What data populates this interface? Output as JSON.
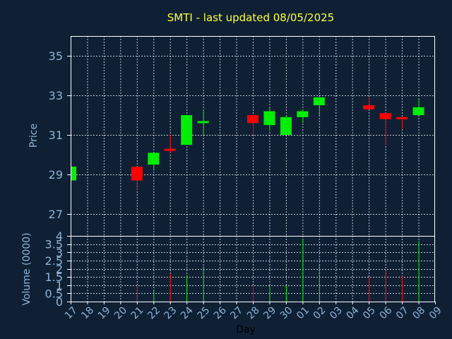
{
  "chart_data": {
    "type": "candlestick",
    "title": "SMTI - last updated 08/05/2025",
    "xlabel": "Day",
    "colors": {
      "background": "#0f2035",
      "up": "#00ee00",
      "down": "#ff0000",
      "grid": "#ffffff",
      "title": "#ffff33",
      "axis_text": "#8fb3d6"
    },
    "x_ticks": [
      "17",
      "18",
      "19",
      "20",
      "21",
      "22",
      "23",
      "24",
      "25",
      "26",
      "27",
      "28",
      "29",
      "30",
      "01",
      "02",
      "03",
      "04",
      "05",
      "06",
      "07",
      "08",
      "09"
    ],
    "price_panel": {
      "ylabel": "Price",
      "ylim": [
        25.9,
        36.0
      ],
      "yticks": [
        27,
        29,
        31,
        33,
        35
      ],
      "candles": [
        {
          "x": "17",
          "open": 28.7,
          "high": 29.4,
          "low": 28.7,
          "close": 29.4
        },
        {
          "x": "21",
          "open": 29.4,
          "high": 29.4,
          "low": 28.2,
          "close": 28.7
        },
        {
          "x": "22",
          "open": 29.5,
          "high": 30.1,
          "low": 29.2,
          "close": 30.1
        },
        {
          "x": "23",
          "open": 30.3,
          "high": 31.0,
          "low": 30.1,
          "close": 30.2
        },
        {
          "x": "24",
          "open": 30.5,
          "high": 32.0,
          "low": 30.5,
          "close": 32.0
        },
        {
          "x": "25",
          "open": 31.6,
          "high": 32.3,
          "low": 31.0,
          "close": 31.7
        },
        {
          "x": "28",
          "open": 32.0,
          "high": 32.0,
          "low": 31.0,
          "close": 31.6
        },
        {
          "x": "29",
          "open": 31.5,
          "high": 32.4,
          "low": 31.2,
          "close": 32.2
        },
        {
          "x": "30",
          "open": 31.0,
          "high": 32.0,
          "low": 31.0,
          "close": 31.9
        },
        {
          "x": "01",
          "open": 31.9,
          "high": 32.3,
          "low": 31.6,
          "close": 32.2
        },
        {
          "x": "02",
          "open": 32.5,
          "high": 32.9,
          "low": 32.0,
          "close": 32.9
        },
        {
          "x": "05",
          "open": 32.5,
          "high": 32.9,
          "low": 32.3,
          "close": 32.3
        },
        {
          "x": "06",
          "open": 32.1,
          "high": 32.1,
          "low": 30.5,
          "close": 31.8
        },
        {
          "x": "07",
          "open": 31.9,
          "high": 31.9,
          "low": 31.3,
          "close": 31.8
        },
        {
          "x": "08",
          "open": 32.0,
          "high": 32.8,
          "low": 32.0,
          "close": 32.4
        }
      ]
    },
    "volume_panel": {
      "ylabel": "Volume (0000)",
      "ylim": [
        0,
        4
      ],
      "yticks": [
        "0",
        "0.5",
        "1",
        "1.5",
        "2",
        "2.5",
        "3",
        "3.5",
        "4"
      ],
      "bars": [
        {
          "x": "21",
          "value": 0.95,
          "direction": "down"
        },
        {
          "x": "22",
          "value": 0.65,
          "direction": "up"
        },
        {
          "x": "23",
          "value": 1.7,
          "direction": "down"
        },
        {
          "x": "24",
          "value": 1.6,
          "direction": "up"
        },
        {
          "x": "25",
          "value": 2.15,
          "direction": "up"
        },
        {
          "x": "28",
          "value": 0.95,
          "direction": "down"
        },
        {
          "x": "29",
          "value": 0.95,
          "direction": "up"
        },
        {
          "x": "30",
          "value": 0.95,
          "direction": "up"
        },
        {
          "x": "01",
          "value": 3.8,
          "direction": "up"
        },
        {
          "x": "02",
          "value": 2.2,
          "direction": "up"
        },
        {
          "x": "05",
          "value": 1.5,
          "direction": "down"
        },
        {
          "x": "06",
          "value": 1.9,
          "direction": "down"
        },
        {
          "x": "07",
          "value": 1.55,
          "direction": "down"
        },
        {
          "x": "08",
          "value": 3.7,
          "direction": "up"
        }
      ]
    }
  }
}
